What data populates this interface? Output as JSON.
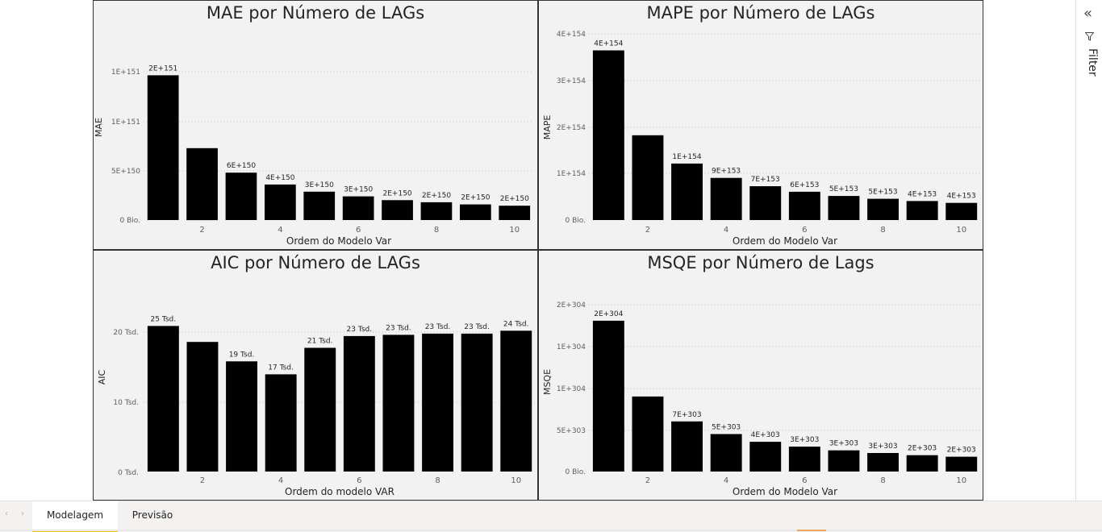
{
  "charts": [
    {
      "id": "mae",
      "title": "MAE por Número de LAGs",
      "chart_data": {
        "type": "bar",
        "title": "MAE por Número de LAGs",
        "xlabel": "Ordem do Modelo Var",
        "ylabel": "MAE",
        "categories": [
          1,
          2,
          3,
          4,
          5,
          6,
          7,
          8,
          9,
          10
        ],
        "x_tick_labels": [
          "2",
          "4",
          "6",
          "8",
          "10"
        ],
        "y_tick_labels": [
          "0 Bio.",
          "5E+150",
          "1E+151",
          "1E+151"
        ],
        "values": [
          17.1,
          8.5,
          5.6,
          4.2,
          3.35,
          2.8,
          2.35,
          2.1,
          1.85,
          1.7
        ],
        "data_labels": [
          "2E+151",
          "",
          "6E+150",
          "4E+150",
          "3E+150",
          "3E+150",
          "2E+150",
          "2E+150",
          "2E+150",
          "2E+150"
        ],
        "ylim": [
          0,
          20
        ],
        "grid": true,
        "bar_color": "#000000"
      }
    },
    {
      "id": "mape",
      "title": "MAPE por Número de LAGs",
      "chart_data": {
        "type": "bar",
        "title": "MAPE por Número de LAGs",
        "xlabel": "Ordem do Modelo Var",
        "ylabel": "MAPE",
        "categories": [
          1,
          2,
          3,
          4,
          5,
          6,
          7,
          8,
          9,
          10
        ],
        "x_tick_labels": [
          "2",
          "4",
          "6",
          "8",
          "10"
        ],
        "y_tick_labels": [
          "0 Bio.",
          "1E+154",
          "2E+154",
          "3E+154",
          "4E+154"
        ],
        "values": [
          3.66,
          1.83,
          1.22,
          0.91,
          0.73,
          0.61,
          0.52,
          0.46,
          0.41,
          0.37
        ],
        "data_labels": [
          "4E+154",
          "",
          "1E+154",
          "9E+153",
          "7E+153",
          "6E+153",
          "5E+153",
          "5E+153",
          "4E+153",
          "4E+153"
        ],
        "ylim": [
          0,
          4
        ],
        "grid": true,
        "bar_color": "#000000"
      }
    },
    {
      "id": "aic",
      "title": "AIC por Número de LAGs",
      "chart_data": {
        "type": "bar",
        "title": "AIC por Número de LAGs",
        "xlabel": "Ordem do modelo VAR",
        "ylabel": "AIC",
        "categories": [
          1,
          2,
          3,
          4,
          5,
          6,
          7,
          8,
          9,
          10
        ],
        "x_tick_labels": [
          "2",
          "4",
          "6",
          "8",
          "10"
        ],
        "y_tick_labels": [
          "0 Tsd.",
          "10 Tsd.",
          "20 Tsd."
        ],
        "values": [
          24.7,
          22.0,
          18.7,
          16.5,
          21.0,
          23.0,
          23.2,
          23.4,
          23.4,
          23.9
        ],
        "data_labels": [
          "25 Tsd.",
          "",
          "19 Tsd.",
          "17 Tsd.",
          "21 Tsd.",
          "23 Tsd.",
          "23 Tsd.",
          "23 Tsd.",
          "23 Tsd.",
          "24 Tsd."
        ],
        "ylim": [
          0,
          29
        ],
        "grid": true,
        "bar_color": "#000000"
      }
    },
    {
      "id": "msqe",
      "title": "MSQE por Número de Lags",
      "chart_data": {
        "type": "bar",
        "title": "MSQE por Número de Lags",
        "xlabel": "Ordem do Modelo Var",
        "ylabel": "MSQE",
        "categories": [
          1,
          2,
          3,
          4,
          5,
          6,
          7,
          8,
          9,
          10
        ],
        "x_tick_labels": [
          "2",
          "4",
          "6",
          "8",
          "10"
        ],
        "y_tick_labels": [
          "0 Bio.",
          "5E+303",
          "1E+304",
          "1E+304",
          "2E+304"
        ],
        "values": [
          20.3,
          10.1,
          6.75,
          5.05,
          4.0,
          3.35,
          2.85,
          2.5,
          2.2,
          2.0
        ],
        "data_labels": [
          "2E+304",
          "",
          "7E+303",
          "5E+303",
          "4E+303",
          "3E+303",
          "3E+303",
          "3E+303",
          "2E+303",
          "2E+303"
        ],
        "ylim": [
          0,
          23
        ],
        "grid": true,
        "bar_color": "#000000"
      }
    }
  ],
  "filter_pane": {
    "label": "Filter",
    "collapse_icon": "double-chevron-left-icon",
    "filter_icon": "funnel-icon"
  },
  "tabs": [
    {
      "label": "Modelagem",
      "active": true
    },
    {
      "label": "Previsão",
      "active": false
    }
  ],
  "nav": {
    "prev_icon": "chevron-left-icon",
    "next_icon": "chevron-right-icon",
    "prev": "‹",
    "next": "›"
  }
}
